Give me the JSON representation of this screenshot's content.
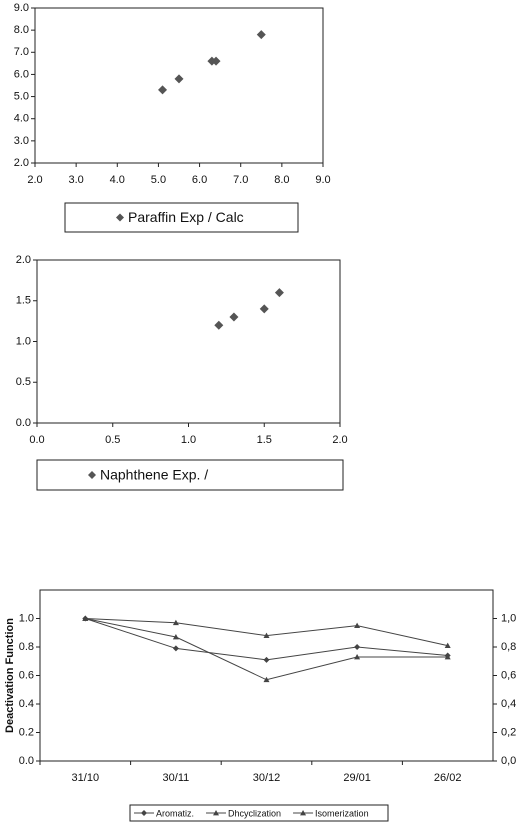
{
  "chart_data": [
    {
      "type": "scatter",
      "xlim": [
        2,
        9
      ],
      "ylim": [
        2,
        9
      ],
      "xticks": [
        {
          "value": 2,
          "label": "2.0"
        },
        {
          "value": 3,
          "label": "3.0"
        },
        {
          "value": 4,
          "label": "4.0"
        },
        {
          "value": 5,
          "label": "5.0"
        },
        {
          "value": 6,
          "label": "6.0"
        },
        {
          "value": 7,
          "label": "7.0"
        },
        {
          "value": 8,
          "label": "8.0"
        },
        {
          "value": 9,
          "label": "9.0"
        }
      ],
      "yticks": [
        {
          "value": 2,
          "label": "2.0"
        },
        {
          "value": 3,
          "label": "3.0"
        },
        {
          "value": 4,
          "label": "4.0"
        },
        {
          "value": 5,
          "label": "5.0"
        },
        {
          "value": 6,
          "label": "6.0"
        },
        {
          "value": 7,
          "label": "7.0"
        },
        {
          "value": 8,
          "label": "8.0"
        },
        {
          "value": 9,
          "label": "9.0"
        }
      ],
      "series": [
        {
          "name": "Paraffin Exp / Calc",
          "color": "#555555",
          "marker": "diamond",
          "x": [
            5.1,
            5.5,
            6.3,
            6.4,
            7.5
          ],
          "values": [
            5.3,
            5.8,
            6.6,
            6.6,
            7.8
          ]
        }
      ]
    },
    {
      "type": "scatter",
      "xlim": [
        0,
        2
      ],
      "ylim": [
        0,
        2
      ],
      "xticks": [
        {
          "value": 0,
          "label": "0.0"
        },
        0.5,
        {
          "value": 1,
          "label": "1.0"
        },
        1.5,
        {
          "value": 2,
          "label": "2.0"
        }
      ],
      "yticks": [
        {
          "value": 0,
          "label": "0.0"
        },
        0.5,
        {
          "value": 1,
          "label": "1.0"
        },
        1.5,
        {
          "value": 2,
          "label": "2.0"
        }
      ],
      "series": [
        {
          "name": "Naphthene Exp. /",
          "color": "#555555",
          "marker": "diamond",
          "x": [
            1.2,
            1.3,
            1.5,
            1.6
          ],
          "values": [
            1.2,
            1.3,
            1.4,
            1.6
          ]
        }
      ]
    },
    {
      "type": "line",
      "y_label": "Deactivation Function",
      "categories": [
        "31/10",
        "30/11",
        "30/12",
        "29/01",
        "26/02"
      ],
      "ylim": [
        0,
        1.2
      ],
      "yticks": [
        {
          "value": 0,
          "label": "0.0"
        },
        0.2,
        0.4,
        0.6,
        0.8,
        {
          "value": 1,
          "label": "1.0"
        }
      ],
      "y2lim": [
        0,
        1.2
      ],
      "y2ticks": [
        {
          "value": 0,
          "label": "0,0"
        },
        {
          "value": 0.2,
          "label": "0,2"
        },
        {
          "value": 0.4,
          "label": "0,4"
        },
        {
          "value": 0.6,
          "label": "0,6"
        },
        {
          "value": 0.8,
          "label": "0,8"
        },
        {
          "value": 1,
          "label": "1,0"
        }
      ],
      "series": [
        {
          "name": "Aromatiz.",
          "color": "#444444",
          "marker": "diamond",
          "values": [
            1.0,
            0.79,
            0.71,
            0.8,
            0.74
          ]
        },
        {
          "name": "Dhcyclization",
          "color": "#444444",
          "marker": "triangle",
          "values": [
            1.0,
            0.87,
            0.57,
            0.73,
            0.73
          ]
        },
        {
          "name": "Isomerization",
          "color": "#444444",
          "marker": "triangle",
          "values": [
            1.0,
            0.97,
            0.88,
            0.95,
            0.81
          ]
        }
      ]
    }
  ]
}
